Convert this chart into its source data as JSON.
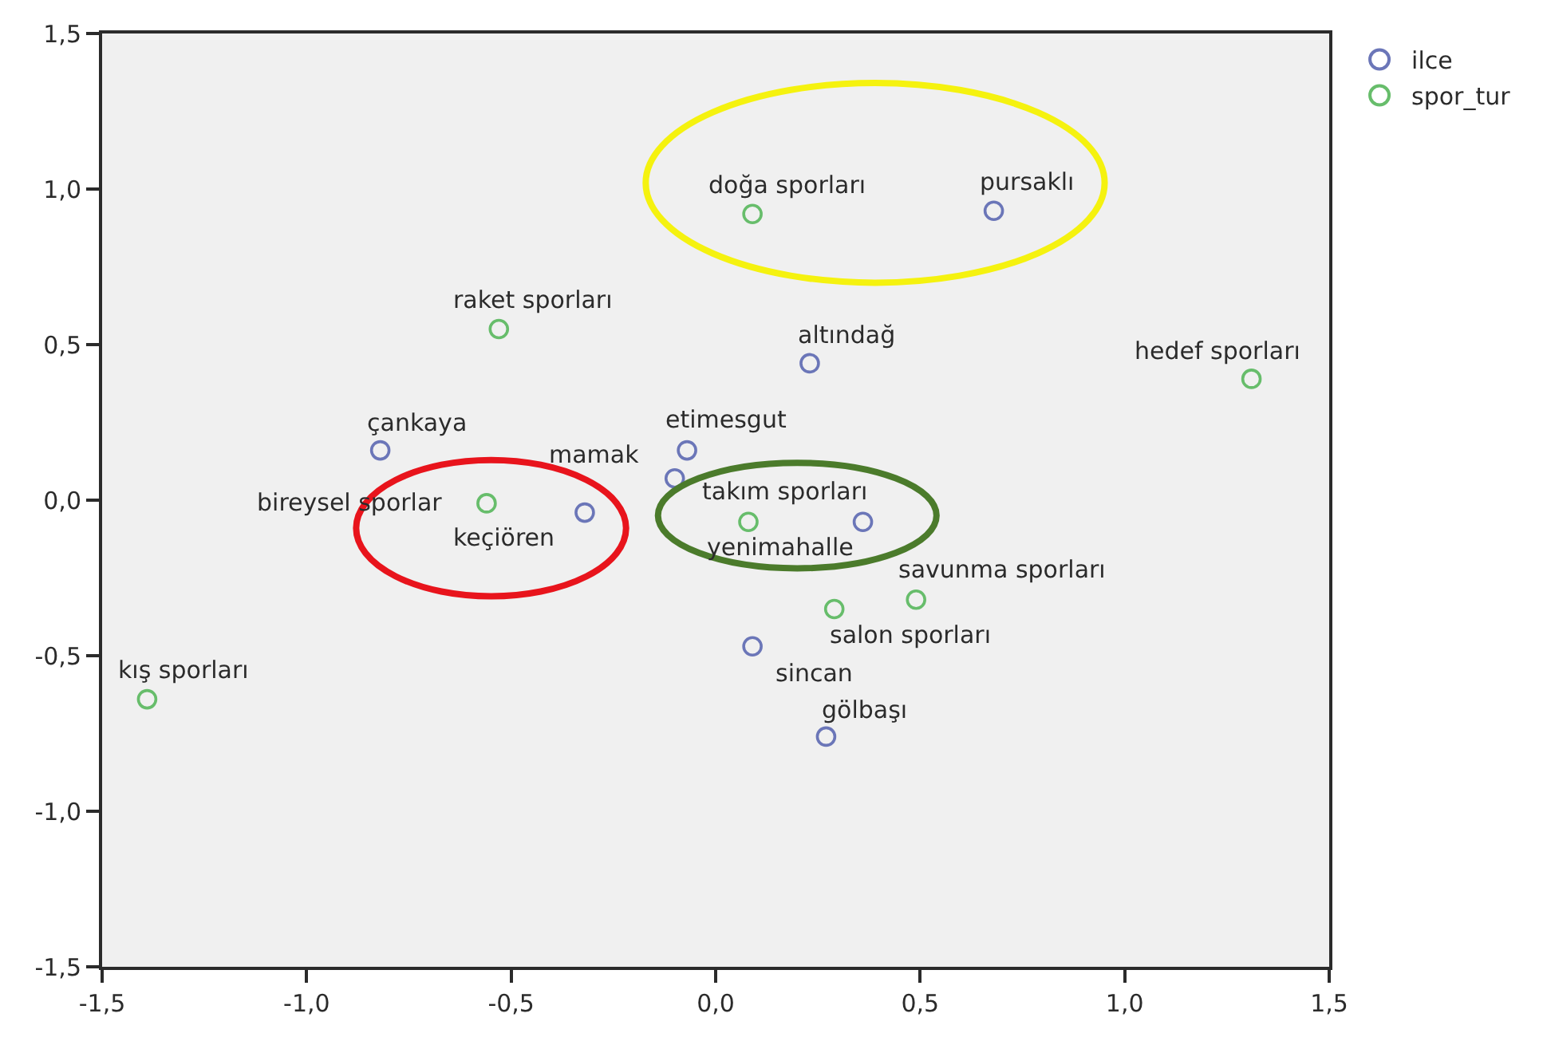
{
  "chart_data": {
    "type": "scatter",
    "xlim": [
      -1.5,
      1.5
    ],
    "ylim": [
      -1.5,
      1.5
    ],
    "xticks": [
      {
        "value": -1.5,
        "label": "-1,5"
      },
      {
        "value": -1.0,
        "label": "-1,0"
      },
      {
        "value": -0.5,
        "label": "-0,5"
      },
      {
        "value": 0.0,
        "label": "0,0"
      },
      {
        "value": 0.5,
        "label": "0,5"
      },
      {
        "value": 1.0,
        "label": "1,0"
      },
      {
        "value": 1.5,
        "label": "1,5"
      }
    ],
    "yticks": [
      {
        "value": -1.5,
        "label": "-1,5"
      },
      {
        "value": -1.0,
        "label": "-1,0"
      },
      {
        "value": -0.5,
        "label": "-0,5"
      },
      {
        "value": 0.0,
        "label": "0,0"
      },
      {
        "value": 0.5,
        "label": "0,5"
      },
      {
        "value": 1.0,
        "label": "1,0"
      },
      {
        "value": 1.5,
        "label": "1,5"
      }
    ],
    "grid": false,
    "legend": "top right",
    "marker": "circle",
    "series": [
      {
        "name": "ilce",
        "color": "#6b76b8",
        "x": [
          0.68,
          0.23,
          -0.82,
          -0.07,
          -0.1,
          -0.32,
          0.36,
          0.09,
          0.27
        ],
        "values": [
          0.93,
          0.44,
          0.16,
          0.16,
          0.07,
          -0.04,
          -0.07,
          -0.47,
          -0.76
        ]
      },
      {
        "name": "spor_tur",
        "color": "#67bd6b",
        "x": [
          0.09,
          -0.53,
          1.31,
          -0.56,
          0.08,
          0.49,
          0.29,
          -1.39
        ],
        "values": [
          0.92,
          0.55,
          0.39,
          -0.01,
          -0.07,
          -0.32,
          -0.35,
          -0.64
        ]
      }
    ],
    "annotations": [
      {
        "text": "pursaklı",
        "x": 0.68,
        "y": 0.93
      },
      {
        "text": "altındağ",
        "x": 0.23,
        "y": 0.44
      },
      {
        "text": "çankaya",
        "x": -0.82,
        "y": 0.16
      },
      {
        "text": "etimesgut",
        "x": -0.07,
        "y": 0.16
      },
      {
        "text": "mamak",
        "x": -0.1,
        "y": 0.07
      },
      {
        "text": "keçiören",
        "x": -0.32,
        "y": -0.04
      },
      {
        "text": "yenimahalle",
        "x": 0.36,
        "y": -0.07
      },
      {
        "text": "sincan",
        "x": 0.09,
        "y": -0.47
      },
      {
        "text": "gölbaşı",
        "x": 0.27,
        "y": -0.76
      },
      {
        "text": "doğa sporları",
        "x": 0.09,
        "y": 0.92
      },
      {
        "text": "raket sporları",
        "x": -0.53,
        "y": 0.55
      },
      {
        "text": "hedef sporları",
        "x": 1.31,
        "y": 0.39
      },
      {
        "text": "bireysel sporlar",
        "x": -0.56,
        "y": -0.01
      },
      {
        "text": "takım sporları",
        "x": 0.08,
        "y": -0.07
      },
      {
        "text": "savunma sporları",
        "x": 0.49,
        "y": -0.32
      },
      {
        "text": "salon sporları",
        "x": 0.29,
        "y": -0.35
      },
      {
        "text": "kış sporları",
        "x": -1.39,
        "y": -0.64
      }
    ]
  }
}
